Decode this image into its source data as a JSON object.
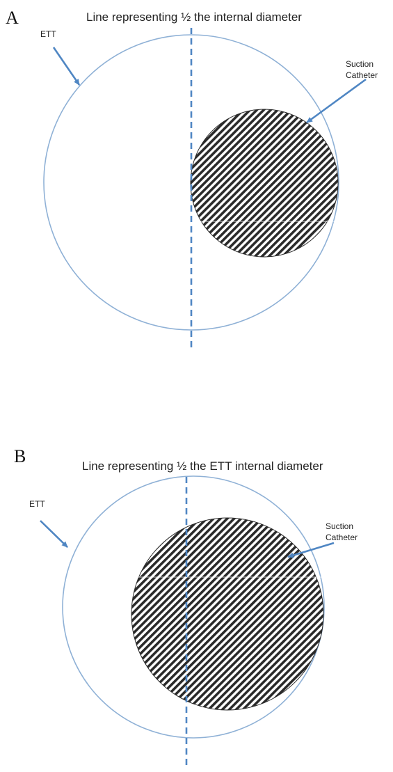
{
  "colors": {
    "circle_stroke": "#8fb1d6",
    "arrow": "#4f86c3",
    "dashed_line": "#4f86c3",
    "hatch_dark": "#2a2a2a",
    "hatch_light": "#ffffff",
    "text": "#222222"
  },
  "panels": [
    {
      "letter": "A",
      "caption": "Line representing ½ the internal diameter",
      "ett_label": "ETT",
      "catheter_label_line1": "Suction",
      "catheter_label_line2": "Catheter"
    },
    {
      "letter": "B",
      "caption": "Line representing ½ the ETT internal diameter",
      "ett_label": "ETT",
      "catheter_label_line1": "Suction",
      "catheter_label_line2": "Catheter"
    }
  ]
}
